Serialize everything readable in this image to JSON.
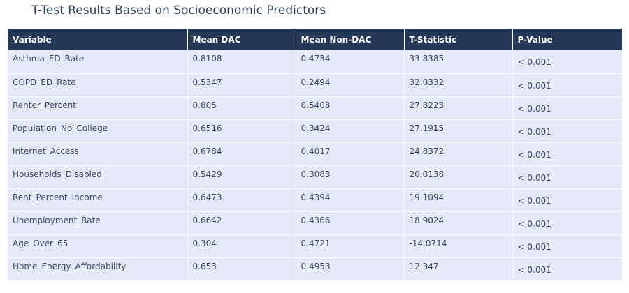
{
  "chart_data": {
    "type": "table",
    "title": "T-Test Results Based on Socioeconomic Predictors",
    "columns": [
      "Variable",
      "Mean DAC",
      "Mean Non-DAC",
      "T-Statistic",
      "P-Value"
    ],
    "rows": [
      [
        "Asthma_ED_Rate",
        "0.8108",
        "0.4734",
        "33.8385",
        "< 0.001"
      ],
      [
        "COPD_ED_Rate",
        "0.5347",
        "0.2494",
        "32.0332",
        "< 0.001"
      ],
      [
        "Renter_Percent",
        "0.805",
        "0.5408",
        "27.8223",
        "< 0.001"
      ],
      [
        "Population_No_College",
        "0.6516",
        "0.3424",
        "27.1915",
        "< 0.001"
      ],
      [
        "Internet_Access",
        "0.6784",
        "0.4017",
        "24.8372",
        "< 0.001"
      ],
      [
        "Households_Disabled",
        "0.5429",
        "0.3083",
        "20.0138",
        "< 0.001"
      ],
      [
        "Rent_Percent_Income",
        "0.6473",
        "0.4394",
        "19.1094",
        "< 0.001"
      ],
      [
        "Unemployment_Rate",
        "0.6642",
        "0.4366",
        "18.9024",
        "< 0.001"
      ],
      [
        "Age_Over_65",
        "0.304",
        "0.4721",
        "-14.0714",
        "< 0.001"
      ],
      [
        "Home_Energy_Affordability",
        "0.653",
        "0.4953",
        "12.347",
        "< 0.001"
      ]
    ]
  },
  "colors": {
    "header_bg": "#253858",
    "header_text": "#ffffff",
    "cell_bg": "#e6e9f8",
    "cell_text": "#3a4a66",
    "title_text": "#2a3f5f"
  }
}
